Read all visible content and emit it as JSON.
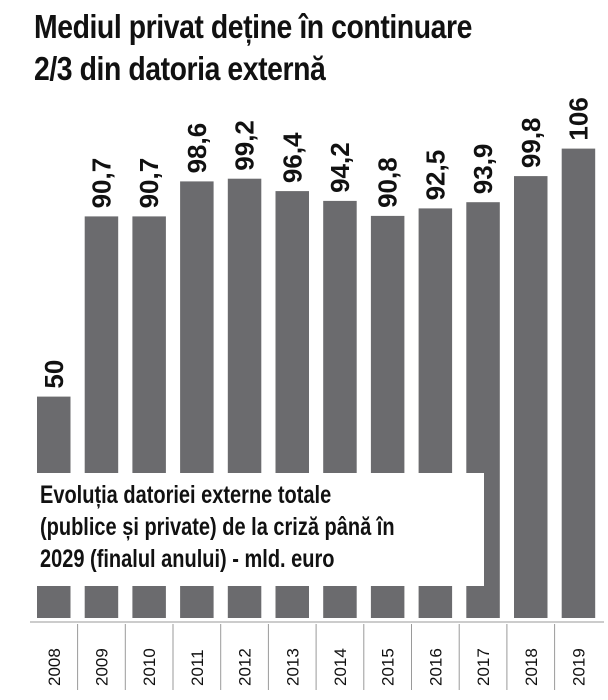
{
  "title_lines": [
    "Mediul privat deține în continuare",
    "2/3 din datoria externă"
  ],
  "note_lines": [
    "Evoluția datoriei externe totale",
    "(publice și private) de la criză până în",
    "2029 (finalul anului) - mld. euro"
  ],
  "colors": {
    "bar": "#6b6b6e",
    "text": "#111111",
    "axis_line": "#9a9a9a"
  },
  "chart_data": {
    "type": "bar",
    "categories": [
      "2008",
      "2009",
      "2010",
      "2011",
      "2012",
      "2013",
      "2014",
      "2015",
      "2016",
      "2017",
      "2018",
      "2019"
    ],
    "values": [
      50,
      90.7,
      90.7,
      98.6,
      99.2,
      96.4,
      94.2,
      90.8,
      92.5,
      93.9,
      99.8,
      106
    ],
    "value_labels": [
      "50",
      "90,7",
      "90,7",
      "98,6",
      "99,2",
      "96,4",
      "94,2",
      "90,8",
      "92,5",
      "93,9",
      "99,8",
      "106"
    ],
    "ylim": [
      0,
      110
    ],
    "grid": false,
    "legend": "none"
  }
}
